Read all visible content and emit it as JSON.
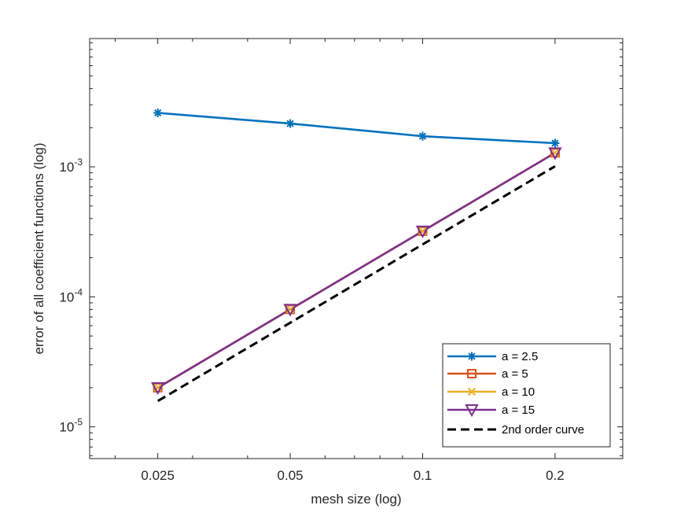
{
  "chart_data": {
    "type": "line",
    "xscale": "log",
    "yscale": "log",
    "xlabel": "mesh size (log)",
    "ylabel": "error of all coefficient functions (log)",
    "xlim": [
      0.0175,
      0.285
    ],
    "ylim": [
      5.7e-06,
      0.0097
    ],
    "x_ticks": [
      {
        "value": 0.025,
        "label": "0.025"
      },
      {
        "value": 0.05,
        "label": "0.05"
      },
      {
        "value": 0.1,
        "label": "0.1"
      },
      {
        "value": 0.2,
        "label": "0.2"
      }
    ],
    "y_ticks": [
      {
        "value": 1e-05,
        "base": "10",
        "exp": "-5"
      },
      {
        "value": 0.0001,
        "base": "10",
        "exp": "-4"
      },
      {
        "value": 0.001,
        "base": "10",
        "exp": "-3"
      }
    ],
    "grid": false,
    "legend_position": "bottom-right",
    "x": [
      0.025,
      0.05,
      0.1,
      0.2
    ],
    "series": [
      {
        "name": "a = 2.5",
        "color": "#0072BD",
        "marker": "asterisk",
        "line": "solid",
        "values": [
          0.0026,
          0.00215,
          0.00172,
          0.00152
        ]
      },
      {
        "name": "a = 5",
        "color": "#D95319",
        "marker": "square",
        "line": "solid",
        "values": [
          2e-05,
          8e-05,
          0.00032,
          0.00128
        ]
      },
      {
        "name": "a = 10",
        "color": "#EDB120",
        "marker": "x",
        "line": "solid",
        "values": [
          2e-05,
          8e-05,
          0.00032,
          0.00128
        ]
      },
      {
        "name": "a = 15",
        "color": "#7E2F8E",
        "marker": "triangle-down",
        "line": "solid",
        "values": [
          2e-05,
          8e-05,
          0.00032,
          0.00128
        ]
      },
      {
        "name": "2nd order curve",
        "color": "#000000",
        "marker": "none",
        "line": "dashed",
        "values": [
          1.58e-05,
          6.32e-05,
          0.000253,
          0.00101
        ]
      }
    ]
  }
}
